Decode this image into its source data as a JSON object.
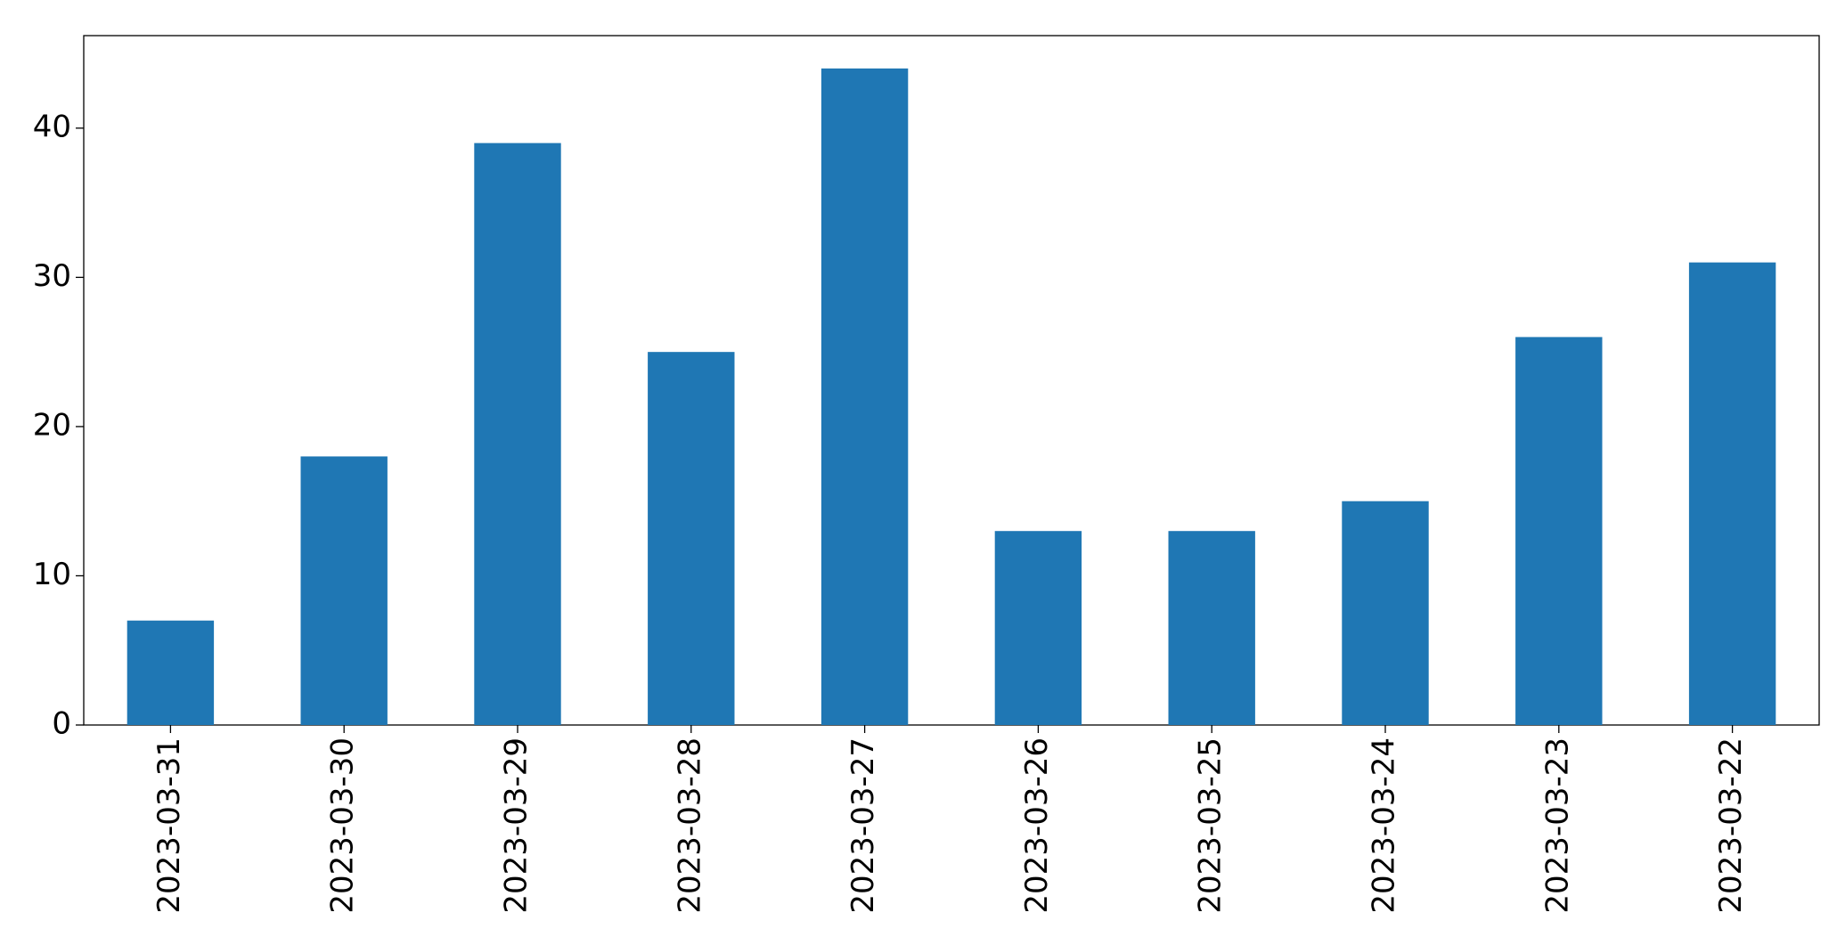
{
  "chart_data": {
    "type": "bar",
    "categories": [
      "2023-03-31",
      "2023-03-30",
      "2023-03-29",
      "2023-03-28",
      "2023-03-27",
      "2023-03-26",
      "2023-03-25",
      "2023-03-24",
      "2023-03-23",
      "2023-03-22"
    ],
    "values": [
      7,
      18,
      39,
      25,
      44,
      13,
      13,
      15,
      26,
      31
    ],
    "color": "#1f77b4",
    "ylim": [
      0,
      46.2
    ],
    "yticks": [
      0,
      10,
      20,
      30,
      40
    ],
    "grid": false
  }
}
